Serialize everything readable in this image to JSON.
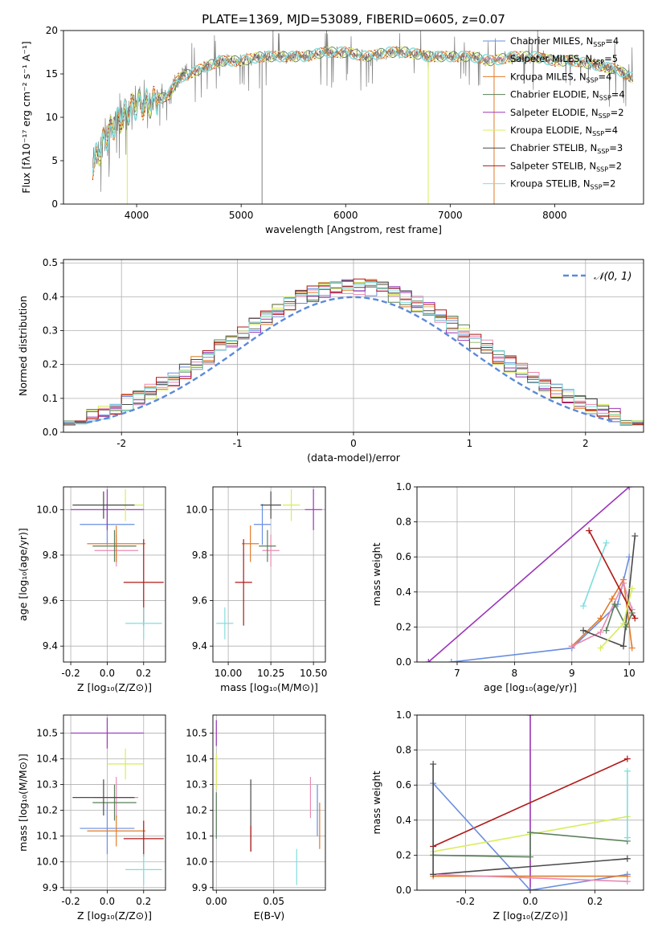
{
  "figure": {
    "title": "PLATE=1369, MJD=53089, FIBERID=0605, z=0.07"
  },
  "colors": {
    "Chabrier MILES": "#6a8ee0",
    "Salpeter MILES": "#e88ab4",
    "Kroupa MILES": "#e07b28",
    "Chabrier ELODIE": "#5b7f5a",
    "Salpeter ELODIE": "#9b36b8",
    "Kroupa ELODIE": "#d8ec5a",
    "Chabrier STELIB": "#4a4a4a",
    "Salpeter STELIB": "#b01818",
    "Kroupa STELIB": "#80dede",
    "data": "#808080",
    "gaussian": "#5b8ad8"
  },
  "chart_data": [
    {
      "id": "spectrum",
      "type": "line",
      "title": "PLATE=1369, MJD=53089, FIBERID=0605, z=0.07",
      "xlabel": "wavelength [Angstrom, rest frame]",
      "ylabel": "Flux [fλ10⁻¹⁷ erg cm⁻² s⁻¹ A⁻¹]",
      "xlim": [
        3300,
        8850
      ],
      "ylim": [
        0,
        20
      ],
      "xticks": [
        4000,
        5000,
        6000,
        7000,
        8000
      ],
      "yticks": [
        0,
        5,
        10,
        15,
        20
      ],
      "grid": false,
      "legend_position": "right",
      "legend": [
        {
          "name": "Chabrier MILES",
          "nssp": "4"
        },
        {
          "name": "Salpeter MILES",
          "nssp": "5"
        },
        {
          "name": "Kroupa MILES",
          "nssp": "4"
        },
        {
          "name": "Chabrier ELODIE",
          "nssp": "4"
        },
        {
          "name": "Salpeter ELODIE",
          "nssp": "2"
        },
        {
          "name": "Kroupa ELODIE",
          "nssp": "4"
        },
        {
          "name": "Chabrier STELIB",
          "nssp": "3"
        },
        {
          "name": "Salpeter STELIB",
          "nssp": "2"
        },
        {
          "name": "Kroupa STELIB",
          "nssp": "2"
        }
      ],
      "continuum": {
        "x": [
          3580,
          3700,
          3800,
          3900,
          4000,
          4100,
          4200,
          4300,
          4400,
          4500,
          4600,
          4700,
          4800,
          4900,
          5000,
          5200,
          5400,
          5600,
          5800,
          6000,
          6200,
          6400,
          6600,
          6800,
          7000,
          7200,
          7400,
          7600,
          7800,
          8000,
          8200,
          8400,
          8600,
          8750
        ],
        "y": [
          4.5,
          7.5,
          9.5,
          10.5,
          11.5,
          11.5,
          12.0,
          12.5,
          14.5,
          15.0,
          15.5,
          16.0,
          16.5,
          16.5,
          16.5,
          17.0,
          17.0,
          17.0,
          17.5,
          17.5,
          17.0,
          17.5,
          17.5,
          17.0,
          17.0,
          17.0,
          16.5,
          17.0,
          17.0,
          16.5,
          16.5,
          16.0,
          15.5,
          14.5
        ]
      },
      "drops": [
        {
          "x": 5200,
          "y_low": 0.0
        },
        {
          "x": 6790,
          "y_low": 0.0
        },
        {
          "x": 7420,
          "y_low": 0.0
        },
        {
          "x": 3910,
          "y_low": 0.0
        }
      ]
    },
    {
      "id": "residuals",
      "type": "line",
      "xlabel": "(data-model)/error",
      "ylabel": "Normed distribution",
      "xlim": [
        -2.5,
        2.5
      ],
      "ylim": [
        0,
        0.51
      ],
      "xticks": [
        -2,
        -1,
        0,
        1,
        2
      ],
      "yticks": [
        0.0,
        0.1,
        0.2,
        0.3,
        0.4,
        0.5
      ],
      "grid": true,
      "legend_position": "top-right",
      "gaussian_label": "𝒩(0, 1)",
      "bin_width": 0.1
    },
    {
      "id": "age_vs_Z",
      "type": "scatter",
      "xlabel": "Z [log₁₀(Z/Z⊙)]",
      "ylabel": "age  [log₁₀(age/yr)]",
      "xlim": [
        -0.24,
        0.32
      ],
      "ylim": [
        9.33,
        10.1
      ],
      "xticks": [
        -0.2,
        0.0,
        0.2
      ],
      "yticks": [
        9.4,
        9.6,
        9.8,
        10.0
      ],
      "grid": true,
      "points": [
        {
          "series": "Chabrier MILES",
          "x": 0.0,
          "y": 9.935,
          "xerr": 0.15,
          "yerr": 0.09
        },
        {
          "series": "Salpeter MILES",
          "x": 0.05,
          "y": 9.82,
          "xerr": 0.12,
          "yerr": 0.07
        },
        {
          "series": "Kroupa MILES",
          "x": 0.05,
          "y": 9.85,
          "xerr": 0.16,
          "yerr": 0.08
        },
        {
          "series": "Chabrier ELODIE",
          "x": 0.04,
          "y": 9.84,
          "xerr": 0.12,
          "yerr": 0.07
        },
        {
          "series": "Salpeter ELODIE",
          "x": 0.0,
          "y": 10.0,
          "xerr": 0.2,
          "yerr": 0.09
        },
        {
          "series": "Kroupa ELODIE",
          "x": 0.1,
          "y": 10.02,
          "xerr": 0.1,
          "yerr": 0.07
        },
        {
          "series": "Chabrier STELIB",
          "x": -0.02,
          "y": 10.02,
          "xerr": 0.17,
          "yerr": 0.06
        },
        {
          "series": "Salpeter STELIB",
          "x": 0.2,
          "y": 9.68,
          "xerr": 0.11,
          "yerr": 0.19
        },
        {
          "series": "Kroupa STELIB",
          "x": 0.2,
          "y": 9.5,
          "xerr": 0.1,
          "yerr": 0.07
        }
      ]
    },
    {
      "id": "age_vs_mass",
      "type": "scatter",
      "xlabel": "mass [log₁₀(M/M⊙)]",
      "xlim": [
        9.91,
        10.57
      ],
      "ylim": [
        9.33,
        10.1
      ],
      "xticks": [
        10.0,
        10.25,
        10.5
      ],
      "yticks": [
        9.4,
        9.6,
        9.8,
        10.0
      ],
      "grid": true,
      "points": [
        {
          "series": "Chabrier MILES",
          "x": 10.2,
          "y": 9.935,
          "xerr": 0.05,
          "yerr": 0.09
        },
        {
          "series": "Salpeter MILES",
          "x": 10.25,
          "y": 9.82,
          "xerr": 0.05,
          "yerr": 0.07
        },
        {
          "series": "Kroupa MILES",
          "x": 10.13,
          "y": 9.85,
          "xerr": 0.05,
          "yerr": 0.08
        },
        {
          "series": "Chabrier ELODIE",
          "x": 10.23,
          "y": 9.84,
          "xerr": 0.05,
          "yerr": 0.07
        },
        {
          "series": "Salpeter ELODIE",
          "x": 10.5,
          "y": 10.0,
          "xerr": 0.05,
          "yerr": 0.09
        },
        {
          "series": "Kroupa ELODIE",
          "x": 10.37,
          "y": 10.02,
          "xerr": 0.05,
          "yerr": 0.07
        },
        {
          "series": "Chabrier STELIB",
          "x": 10.25,
          "y": 10.02,
          "xerr": 0.06,
          "yerr": 0.06
        },
        {
          "series": "Salpeter STELIB",
          "x": 10.09,
          "y": 9.68,
          "xerr": 0.05,
          "yerr": 0.19
        },
        {
          "series": "Kroupa STELIB",
          "x": 9.98,
          "y": 9.5,
          "xerr": 0.05,
          "yerr": 0.07
        }
      ]
    },
    {
      "id": "weight_vs_age",
      "type": "line",
      "xlabel": "age  [log₁₀(age/yr)]",
      "ylabel": "mass weight",
      "xlim": [
        6.3,
        10.25
      ],
      "ylim": [
        0,
        1.0
      ],
      "xticks": [
        7,
        8,
        9,
        10
      ],
      "yticks": [
        0.0,
        0.2,
        0.4,
        0.6,
        0.8,
        1.0
      ],
      "grid": true,
      "series": [
        {
          "name": "Salpeter ELODIE",
          "x": [
            6.5,
            10.0
          ],
          "y": [
            0.0,
            1.0
          ]
        },
        {
          "name": "Chabrier MILES",
          "x": [
            6.9,
            9.0,
            9.8,
            10.0
          ],
          "y": [
            0.0,
            0.08,
            0.33,
            0.6
          ]
        },
        {
          "name": "Kroupa MILES",
          "x": [
            9.0,
            9.5,
            9.7,
            9.9,
            10.05
          ],
          "y": [
            0.09,
            0.25,
            0.36,
            0.47,
            0.08
          ]
        },
        {
          "name": "Salpeter MILES",
          "x": [
            9.0,
            9.5,
            9.9,
            10.05
          ],
          "y": [
            0.09,
            0.17,
            0.45,
            0.3
          ]
        },
        {
          "name": "Kroupa STELIB",
          "x": [
            9.2,
            9.6
          ],
          "y": [
            0.32,
            0.68
          ]
        },
        {
          "name": "Salpeter STELIB",
          "x": [
            9.3,
            10.1
          ],
          "y": [
            0.75,
            0.25
          ]
        },
        {
          "name": "Chabrier STELIB",
          "x": [
            9.2,
            9.9,
            10.1
          ],
          "y": [
            0.18,
            0.09,
            0.72
          ]
        },
        {
          "name": "Chabrier ELODIE",
          "x": [
            9.6,
            9.75,
            9.95,
            10.05
          ],
          "y": [
            0.18,
            0.33,
            0.2,
            0.28
          ]
        },
        {
          "name": "Kroupa ELODIE",
          "x": [
            9.5,
            9.9,
            10.05
          ],
          "y": [
            0.08,
            0.22,
            0.42
          ]
        }
      ]
    },
    {
      "id": "mass_vs_Z",
      "type": "scatter",
      "xlabel": "Z [log₁₀(Z/Z⊙)]",
      "ylabel": "mass [log₁₀(M/M⊙)]",
      "xlim": [
        -0.24,
        0.32
      ],
      "ylim": [
        9.89,
        10.57
      ],
      "xticks": [
        -0.2,
        0.0,
        0.2
      ],
      "yticks": [
        9.9,
        10.0,
        10.1,
        10.2,
        10.3,
        10.4,
        10.5
      ],
      "grid": true,
      "points": [
        {
          "series": "Chabrier MILES",
          "x": 0.0,
          "y": 10.13,
          "xerr": 0.15,
          "yerr": 0.1
        },
        {
          "series": "Salpeter MILES",
          "x": 0.05,
          "y": 10.25,
          "xerr": 0.12,
          "yerr": 0.08
        },
        {
          "series": "Kroupa MILES",
          "x": 0.05,
          "y": 10.12,
          "xerr": 0.16,
          "yerr": 0.06
        },
        {
          "series": "Chabrier ELODIE",
          "x": 0.04,
          "y": 10.23,
          "xerr": 0.12,
          "yerr": 0.07
        },
        {
          "series": "Salpeter ELODIE",
          "x": 0.0,
          "y": 10.5,
          "xerr": 0.2,
          "yerr": 0.06
        },
        {
          "series": "Kroupa ELODIE",
          "x": 0.1,
          "y": 10.38,
          "xerr": 0.1,
          "yerr": 0.06
        },
        {
          "series": "Chabrier STELIB",
          "x": -0.02,
          "y": 10.25,
          "xerr": 0.17,
          "yerr": 0.07
        },
        {
          "series": "Salpeter STELIB",
          "x": 0.2,
          "y": 10.09,
          "xerr": 0.11,
          "yerr": 0.07
        },
        {
          "series": "Kroupa STELIB",
          "x": 0.2,
          "y": 9.97,
          "xerr": 0.1,
          "yerr": 0.06
        }
      ]
    },
    {
      "id": "mass_vs_EBV",
      "type": "scatter",
      "xlabel": "E(B-V)",
      "xlim": [
        -0.003,
        0.095
      ],
      "ylim": [
        9.89,
        10.57
      ],
      "xticks": [
        0.0,
        0.05
      ],
      "yticks": [
        9.9,
        10.0,
        10.1,
        10.2,
        10.3,
        10.4,
        10.5
      ],
      "grid": true,
      "points": [
        {
          "series": "Chabrier MILES",
          "x": 0.088,
          "y": 10.2,
          "yerr": 0.1
        },
        {
          "series": "Salpeter MILES",
          "x": 0.082,
          "y": 10.25,
          "yerr": 0.08
        },
        {
          "series": "Kroupa MILES",
          "x": 0.09,
          "y": 10.14,
          "yerr": 0.09
        },
        {
          "series": "Chabrier ELODIE",
          "x": 0.0,
          "y": 10.18,
          "yerr": 0.09
        },
        {
          "series": "Salpeter ELODIE",
          "x": 0.0,
          "y": 10.5,
          "yerr": 0.05
        },
        {
          "series": "Kroupa ELODIE",
          "x": 0.0,
          "y": 10.35,
          "yerr": 0.07
        },
        {
          "series": "Chabrier STELIB",
          "x": 0.03,
          "y": 10.18,
          "yerr": 0.14
        },
        {
          "series": "Salpeter STELIB",
          "x": 0.03,
          "y": 10.09,
          "yerr": 0.05
        },
        {
          "series": "Kroupa STELIB",
          "x": 0.07,
          "y": 9.98,
          "yerr": 0.07
        }
      ]
    },
    {
      "id": "weight_vs_Z",
      "type": "line",
      "xlabel": "Z [log₁₀(Z/Z⊙)]",
      "ylabel": "mass weight",
      "xlim": [
        -0.35,
        0.35
      ],
      "ylim": [
        0,
        1.0
      ],
      "xticks": [
        -0.2,
        0.0,
        0.2
      ],
      "yticks": [
        0.0,
        0.2,
        0.4,
        0.6,
        0.8,
        1.0
      ],
      "grid": true,
      "series": [
        {
          "name": "Salpeter ELODIE",
          "x": [
            0.0,
            0.0
          ],
          "y": [
            0.0,
            1.0
          ]
        },
        {
          "name": "Salpeter STELIB",
          "x": [
            -0.3,
            0.3
          ],
          "y": [
            0.25,
            0.75
          ]
        },
        {
          "name": "Chabrier MILES",
          "x": [
            -0.3,
            0.0,
            0.3
          ],
          "y": [
            0.61,
            0.0,
            0.09
          ]
        },
        {
          "name": "Kroupa ELODIE",
          "x": [
            -0.3,
            0.3
          ],
          "y": [
            0.22,
            0.42
          ]
        },
        {
          "name": "Chabrier STELIB",
          "x": [
            -0.3,
            0.3
          ],
          "y": [
            0.09,
            0.18
          ]
        },
        {
          "name": "Chabrier ELODIE",
          "x": [
            -0.3,
            0.0,
            0.0,
            0.3
          ],
          "y": [
            0.2,
            0.19,
            0.33,
            0.28
          ]
        },
        {
          "name": "Kroupa MILES",
          "x": [
            -0.3,
            0.3
          ],
          "y": [
            0.08,
            0.08
          ]
        },
        {
          "name": "Salpeter MILES",
          "x": [
            -0.3,
            0.3
          ],
          "y": [
            0.09,
            0.05
          ]
        },
        {
          "name": "Kroupa STELIB",
          "x": [
            0.3,
            0.3
          ],
          "y": [
            0.3,
            0.68
          ]
        },
        {
          "name": "Chabrier STELIB",
          "x": [
            -0.3,
            -0.3
          ],
          "y": [
            0.09,
            0.72
          ]
        }
      ]
    }
  ]
}
